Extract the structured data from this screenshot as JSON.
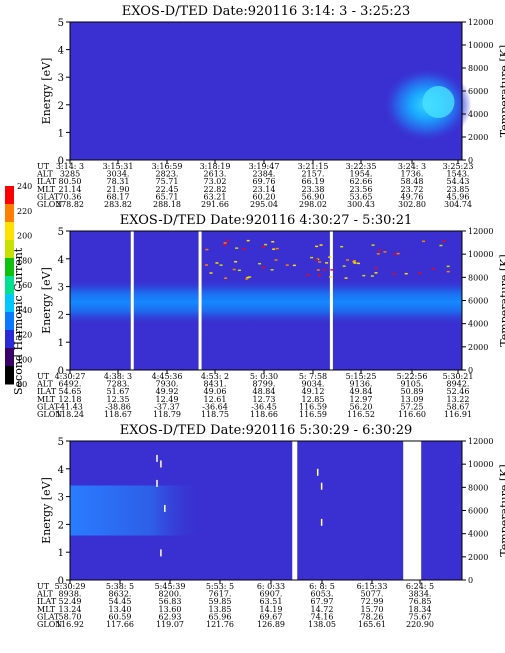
{
  "colorbar": {
    "label": "Second Harmonic Current",
    "ticks": [
      "80",
      "100",
      "120",
      "140",
      "160",
      "180",
      "200",
      "220",
      "240"
    ],
    "colors": [
      "#000000",
      "#3a006a",
      "#2a2ad6",
      "#0a78ff",
      "#00c8ff",
      "#00e090",
      "#10c010",
      "#c8e000",
      "#ffe000",
      "#ff8000",
      "#ff0000"
    ]
  },
  "chart_data": [
    {
      "type": "heatmap",
      "title": "EXOS-D/TED  Date:920116  3:14: 3 - 3:25:23",
      "ylabel": "Energy [eV]",
      "y2label": "Temperature [K]",
      "ylim": [
        0,
        5
      ],
      "y2lim": [
        0,
        12000
      ],
      "yticks": [
        "0",
        "1",
        "2",
        "3",
        "4",
        "5"
      ],
      "y2ticks": [
        "0",
        "2000",
        "4000",
        "6000",
        "8000",
        "10000",
        "12000"
      ],
      "ephemeris": {
        "labels": [
          "UT",
          "ALT",
          "ILAT",
          "MLT",
          "GLAT",
          "GLON"
        ],
        "columns": [
          [
            "3:14: 3",
            "3285",
            "80.50",
            "21.14",
            "70.36",
            "278.82"
          ],
          [
            "3:15:31",
            "3034.",
            "78.31",
            "21.90",
            "68.17",
            "283.82"
          ],
          [
            "3:16:59",
            "2823.",
            "75.71",
            "22.45",
            "65.71",
            "288.18"
          ],
          [
            "3:18:19",
            "2613.",
            "73.02",
            "22.82",
            "63.21",
            "291.66"
          ],
          [
            "3:19:47",
            "2384.",
            "69.76",
            "23.14",
            "60.20",
            "295.04"
          ],
          [
            "3:21:15",
            "2157.",
            "66.19",
            "23.38",
            "56.90",
            "298.02"
          ],
          [
            "3:22:35",
            "1954.",
            "62.66",
            "23.56",
            "53.65",
            "300.43"
          ],
          [
            "3:24: 3",
            "1736.",
            "58.48",
            "23.72",
            "49.76",
            "302.80"
          ],
          [
            "3:25:23",
            "1543.",
            "54.43",
            "23.85",
            "45.96",
            "304.74"
          ]
        ]
      }
    },
    {
      "type": "heatmap",
      "title": "EXOS-D/TED  Date:920116  4:30:27 - 5:30:21",
      "ylabel": "Energy [eV]",
      "y2label": "Temperature [K]",
      "ylim": [
        0,
        5
      ],
      "y2lim": [
        0,
        12000
      ],
      "yticks": [
        "0",
        "1",
        "2",
        "3",
        "4",
        "5"
      ],
      "y2ticks": [
        "0",
        "2000",
        "4000",
        "6000",
        "8000",
        "10000",
        "12000"
      ],
      "ephemeris": {
        "labels": [
          "UT",
          "ALT",
          "ILAT",
          "MLT",
          "GLAT",
          "GLON"
        ],
        "columns": [
          [
            "4:30:27",
            "6492.",
            "54.65",
            "12.18",
            "-41.43",
            "118.24"
          ],
          [
            "4:38: 3",
            "7283.",
            "51.67",
            "12.35",
            "-38.86",
            "118.67"
          ],
          [
            "4:45:36",
            "7930.",
            "49.92",
            "12.49",
            "-37.37",
            "118.79"
          ],
          [
            "4:53: 2",
            "8431.",
            "49.06",
            "12.61",
            "-36.64",
            "118.75"
          ],
          [
            "5: 0:30",
            "8799.",
            "48.84",
            "12.73",
            "-36.45",
            "118.66"
          ],
          [
            "5: 7:58",
            "9034.",
            "49.12",
            "12.85",
            "116.59",
            "116.59"
          ],
          [
            "5:15:25",
            "9136.",
            "49.84",
            "12.97",
            "56.20",
            "116.52"
          ],
          [
            "5:22:56",
            "9105.",
            "50.89",
            "13.09",
            "57.25",
            "116.60"
          ],
          [
            "5:30:21",
            "8942.",
            "52.46",
            "13.22",
            "58.67",
            "116.91"
          ]
        ]
      }
    },
    {
      "type": "heatmap",
      "title": "EXOS-D/TED  Date:920116  5:30:29 - 6:30:29",
      "ylabel": "Energy [eV]",
      "y2label": "Temperature [K]",
      "ylim": [
        0,
        5
      ],
      "y2lim": [
        0,
        12000
      ],
      "yticks": [
        "0",
        "1",
        "2",
        "3",
        "4",
        "5"
      ],
      "y2ticks": [
        "0",
        "2000",
        "4000",
        "6000",
        "8000",
        "10000",
        "12000"
      ],
      "ephemeris": {
        "labels": [
          "UT",
          "ALT",
          "ILAT",
          "MLT",
          "GLAT",
          "GLON"
        ],
        "columns": [
          [
            "5:30:29",
            "8938.",
            "52.49",
            "13.24",
            "58.70",
            "116.92"
          ],
          [
            "5:38: 5",
            "8632.",
            "54.45",
            "13.40",
            "60.59",
            "117.66"
          ],
          [
            "5:45:39",
            "8200.",
            "56.83",
            "13.60",
            "62.93",
            "119.07"
          ],
          [
            "5:53: 5",
            "7617.",
            "59.85",
            "13.85",
            "65.96",
            "121.76"
          ],
          [
            "6: 0:33",
            "6907.",
            "63.51",
            "14.19",
            "69.67",
            "126.89"
          ],
          [
            "6: 8: 5",
            "6053.",
            "67.97",
            "14.72",
            "74.16",
            "138.05"
          ],
          [
            "6:15:33",
            "5077.",
            "72.99",
            "15.70",
            "78.26",
            "165.61"
          ],
          [
            "6:24: 5",
            "3834.",
            "76.85",
            "18.34",
            "75.67",
            "220.90"
          ]
        ]
      }
    }
  ]
}
